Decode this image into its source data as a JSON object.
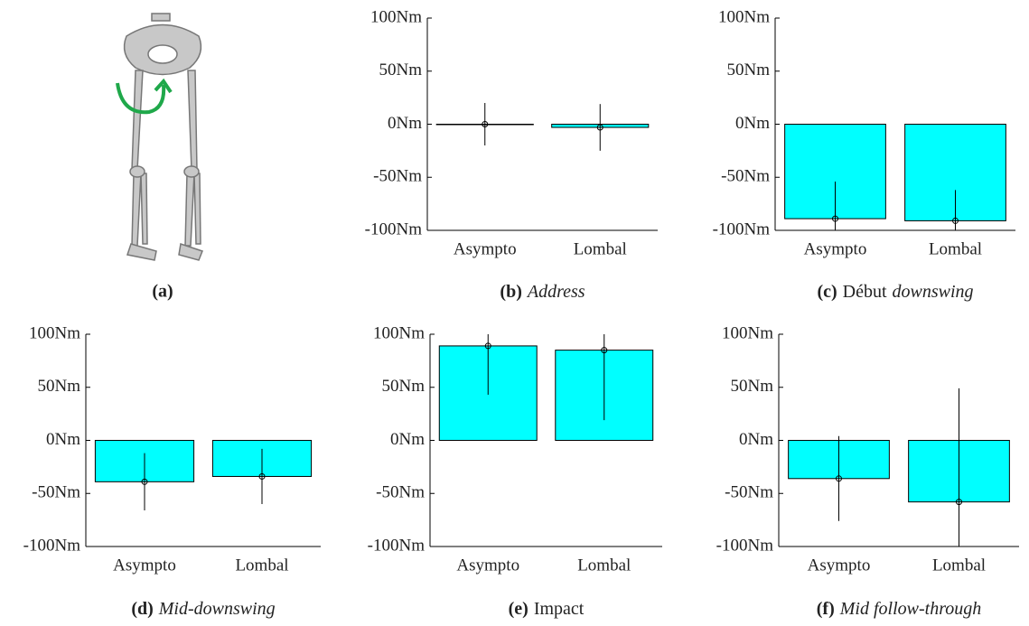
{
  "figure_a": {
    "caption_label": "(a)"
  },
  "chart_data": [
    {
      "type": "bar",
      "caption_label": "(b)",
      "title_italic": "Address",
      "categories": [
        "Asympto",
        "Lombal"
      ],
      "values": [
        0,
        -3
      ],
      "errors": [
        20,
        22
      ],
      "color": "#00ffff",
      "ylim": [
        -100,
        100
      ],
      "yticks": [
        {
          "value": -100,
          "label": "-100Nm"
        },
        {
          "value": -50,
          "label": "-50Nm"
        },
        {
          "value": 0,
          "label": "0Nm"
        },
        {
          "value": 50,
          "label": "50Nm"
        },
        {
          "value": 100,
          "label": "100Nm"
        }
      ]
    },
    {
      "type": "bar",
      "caption_label": "(c)",
      "title": "Début",
      "title_italic": "downswing",
      "categories": [
        "Asympto",
        "Lombal"
      ],
      "values": [
        -89,
        -91
      ],
      "errors": [
        35,
        29
      ],
      "color": "#00ffff",
      "ylim": [
        -100,
        100
      ],
      "yticks": [
        {
          "value": -100,
          "label": "-100Nm"
        },
        {
          "value": -50,
          "label": "-50Nm"
        },
        {
          "value": 0,
          "label": "0Nm"
        },
        {
          "value": 50,
          "label": "50Nm"
        },
        {
          "value": 100,
          "label": "100Nm"
        }
      ]
    },
    {
      "type": "bar",
      "caption_label": "(d)",
      "title_italic": "Mid-downswing",
      "categories": [
        "Asympto",
        "Lombal"
      ],
      "values": [
        -39,
        -34
      ],
      "errors": [
        27,
        26
      ],
      "color": "#00ffff",
      "ylim": [
        -100,
        100
      ],
      "yticks": [
        {
          "value": -100,
          "label": "-100Nm"
        },
        {
          "value": -50,
          "label": "-50Nm"
        },
        {
          "value": 0,
          "label": "0Nm"
        },
        {
          "value": 50,
          "label": "50Nm"
        },
        {
          "value": 100,
          "label": "100Nm"
        }
      ]
    },
    {
      "type": "bar",
      "caption_label": "(e)",
      "title": "Impact",
      "categories": [
        "Asympto",
        "Lombal"
      ],
      "values": [
        89,
        85
      ],
      "errors": [
        46,
        66
      ],
      "color": "#00ffff",
      "ylim": [
        -100,
        100
      ],
      "yticks": [
        {
          "value": -100,
          "label": "-100Nm"
        },
        {
          "value": -50,
          "label": "-50Nm"
        },
        {
          "value": 0,
          "label": "0Nm"
        },
        {
          "value": 50,
          "label": "50Nm"
        },
        {
          "value": 100,
          "label": "100Nm"
        }
      ]
    },
    {
      "type": "bar",
      "caption_label": "(f)",
      "title_italic": "Mid follow-through",
      "categories": [
        "Asympto",
        "Lombal"
      ],
      "values": [
        -36,
        -58
      ],
      "errors": [
        40,
        107
      ],
      "color": "#00ffff",
      "ylim": [
        -100,
        100
      ],
      "yticks": [
        {
          "value": -100,
          "label": "-100Nm"
        },
        {
          "value": -50,
          "label": "-50Nm"
        },
        {
          "value": 0,
          "label": "0Nm"
        },
        {
          "value": 50,
          "label": "50Nm"
        },
        {
          "value": 100,
          "label": "100Nm"
        }
      ]
    }
  ]
}
